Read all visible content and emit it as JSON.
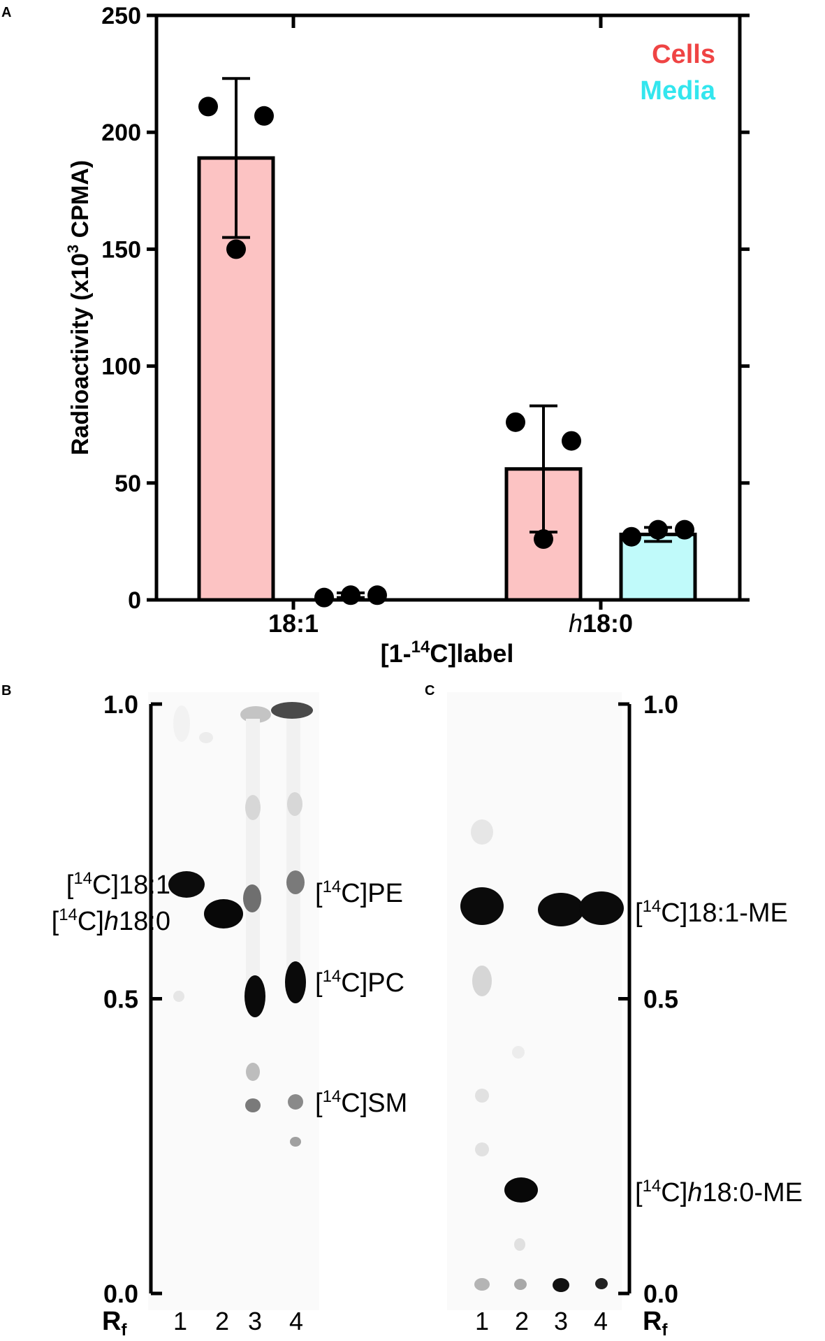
{
  "panel_a": {
    "label": "A",
    "chart_data": {
      "type": "bar",
      "categories": [
        "18:1",
        "h18:0"
      ],
      "category_display": [
        {
          "italic": "",
          "rest": "18:1"
        },
        {
          "italic": "h",
          "rest": "18:0"
        }
      ],
      "series": [
        {
          "name": "Cells",
          "color": "#ef4444",
          "fill": "#fcc3c3",
          "values": [
            189,
            56
          ],
          "error": [
            34,
            27
          ],
          "points": [
            [
              211,
              207,
              150
            ],
            [
              76,
              68,
              26
            ]
          ]
        },
        {
          "name": "Media",
          "color": "#33e6ee",
          "fill": "#c0fafa",
          "values": [
            2,
            28
          ],
          "error": [
            1,
            3
          ],
          "points": [
            [
              1,
              2,
              2
            ],
            [
              27,
              30,
              30
            ]
          ]
        }
      ],
      "bar_present": [
        [
          true,
          false
        ],
        [
          true,
          true
        ]
      ],
      "ylim": [
        0,
        250
      ],
      "yticks": [
        0,
        50,
        100,
        150,
        200,
        250
      ],
      "ylabel": {
        "main": "Radioactivity (x10",
        "sup": "3",
        "rest": " CPMA)"
      },
      "xlabel": {
        "pre": "[1-",
        "sup": "14",
        "post": "C]label"
      },
      "legend_placement": "top-right"
    }
  },
  "panel_b": {
    "label": "B",
    "axis": {
      "ticks": [
        "1.0",
        "0.5",
        "0.0"
      ],
      "rf_main": "R",
      "rf_sub": "f"
    },
    "lanes": [
      "1",
      "2",
      "3",
      "4"
    ],
    "left_labels": [
      {
        "sup": "14",
        "pre": "[",
        "post": "C]18:1",
        "italic": "",
        "tail": ""
      },
      {
        "sup": "14",
        "pre": "[",
        "post": "C]",
        "italic": "h",
        "tail": "18:0"
      }
    ],
    "right_labels": [
      {
        "sup": "14",
        "pre": "[",
        "post": "C]PE"
      },
      {
        "sup": "14",
        "pre": "[",
        "post": "C]PC"
      },
      {
        "sup": "14",
        "pre": "[",
        "post": "C]SM"
      }
    ]
  },
  "panel_c": {
    "label": "C",
    "axis": {
      "ticks": [
        "1.0",
        "0.5",
        "0.0"
      ],
      "rf_main": "R",
      "rf_sub": "f"
    },
    "lanes": [
      "1",
      "2",
      "3",
      "4"
    ],
    "right_labels": [
      {
        "sup": "14",
        "pre": "[",
        "post": "C]18:1-ME",
        "italic": "",
        "tail": ""
      },
      {
        "sup": "14",
        "pre": "[",
        "post": "C]",
        "italic": "h",
        "tail": "18:0-ME"
      }
    ]
  }
}
